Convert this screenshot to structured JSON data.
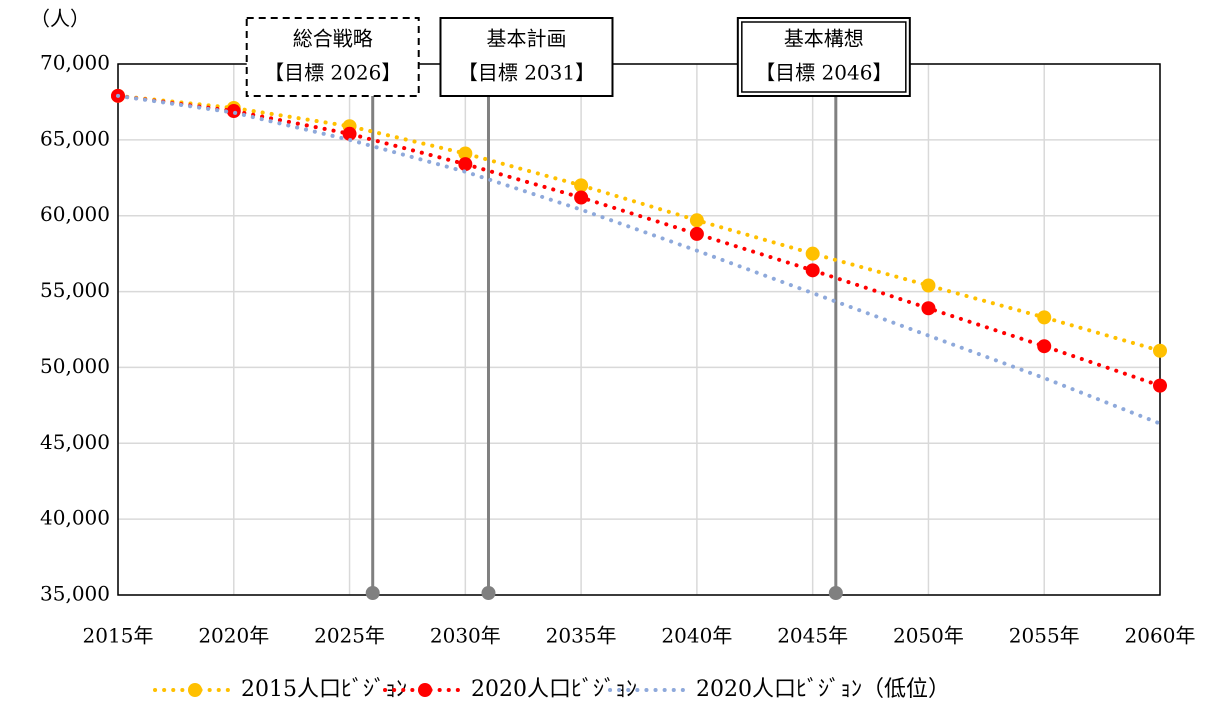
{
  "chart_data": {
    "type": "line",
    "y_unit": "（人）",
    "categories": [
      "2015年",
      "2020年",
      "2025年",
      "2030年",
      "2035年",
      "2040年",
      "2045年",
      "2050年",
      "2055年",
      "2060年"
    ],
    "series": [
      {
        "name": "2015人口ﾋﾞｼﾞｮﾝ",
        "color": "#FFC000",
        "marker": true,
        "values": [
          67900,
          67100,
          65900,
          64100,
          62000,
          59700,
          57500,
          55400,
          53300,
          51100
        ]
      },
      {
        "name": "2020人口ﾋﾞｼﾞｮﾝ",
        "color": "#FF0000",
        "marker": true,
        "values": [
          67900,
          66900,
          65400,
          63400,
          61200,
          58800,
          56400,
          53900,
          51400,
          48800
        ]
      },
      {
        "name": "2020人口ﾋﾞｼﾞｮﾝ（低位）",
        "color": "#8EA9DB",
        "marker": false,
        "values": [
          67900,
          66800,
          65000,
          62900,
          60400,
          57700,
          54900,
          52100,
          49300,
          46300
        ]
      }
    ],
    "ylim": [
      35000,
      70000
    ],
    "yticks": [
      {
        "value": 35000,
        "label": "35,000"
      },
      {
        "value": 40000,
        "label": "40,000"
      },
      {
        "value": 45000,
        "label": "45,000"
      },
      {
        "value": 50000,
        "label": "50,000"
      },
      {
        "value": 55000,
        "label": "55,000"
      },
      {
        "value": 60000,
        "label": "60,000"
      },
      {
        "value": 65000,
        "label": "65,000"
      },
      {
        "value": 70000,
        "label": "70,000"
      }
    ],
    "grid": true,
    "legend": "bottom",
    "annotations": [
      {
        "lines": [
          "総合戦略",
          "【目標 2026】"
        ],
        "x": 2026,
        "border": "dashed"
      },
      {
        "lines": [
          "基本計画",
          "【目標 2031】"
        ],
        "x": 2031,
        "border": "solid"
      },
      {
        "lines": [
          "基本構想",
          "【目標 2046】"
        ],
        "x": 2046,
        "border": "double"
      }
    ]
  }
}
